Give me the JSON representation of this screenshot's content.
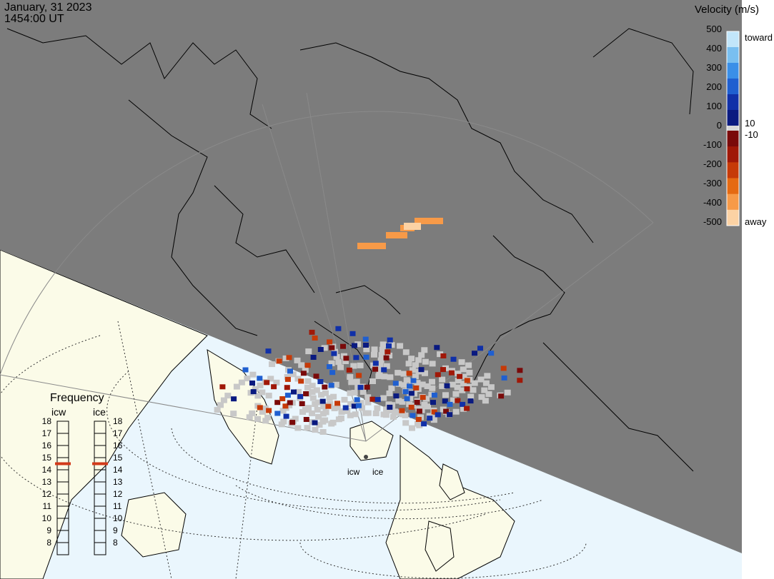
{
  "header": {
    "date": "January, 31 2023",
    "time": "1454:00 UT"
  },
  "colorbar": {
    "title": "Velocity (m/s)",
    "ticks": [
      "500",
      "400",
      "300",
      "200",
      "100",
      "0",
      "-100",
      "-200",
      "-300",
      "-400",
      "-500"
    ],
    "toward_label": "toward",
    "away_label": "away",
    "upper_gap_label": "10",
    "lower_gap_label": "-10",
    "colors_toward": [
      "#0a1a80",
      "#1030a8",
      "#1f5fd0",
      "#3a8fe8",
      "#79bff0",
      "#c2e6fa"
    ],
    "colors_away": [
      "#7a0a0a",
      "#a01808",
      "#c63a08",
      "#e56a12",
      "#f79a48",
      "#fcd2a4"
    ]
  },
  "frequency": {
    "title": "Frequency",
    "columns": [
      {
        "label": "icw",
        "selected": 15
      },
      {
        "label": "ice",
        "selected": 15
      }
    ],
    "values": [
      18,
      17,
      16,
      15,
      14,
      13,
      12,
      11,
      10,
      9,
      8
    ],
    "marker_color": "#d23a1a"
  },
  "stations": [
    {
      "name": "icw"
    },
    {
      "name": "ice"
    }
  ],
  "map_colors": {
    "night": "#7c7c7c",
    "day_land": "#fbfbe8",
    "day_ocean": "#eaf6fd",
    "ground_scatter": "#c8c8c8"
  }
}
